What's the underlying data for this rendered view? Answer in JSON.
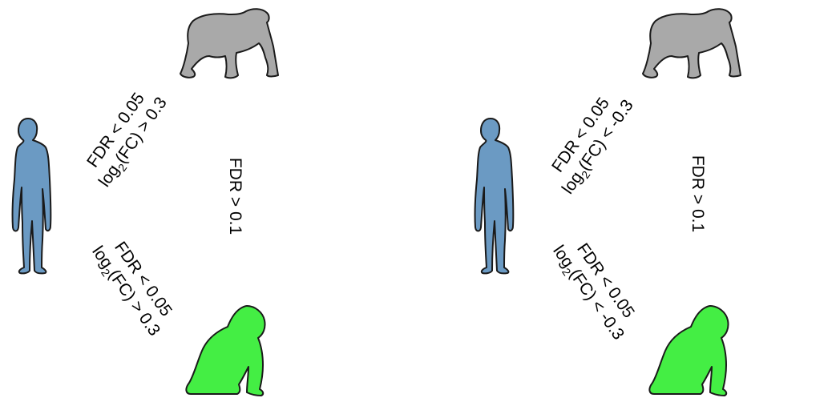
{
  "colors": {
    "human": "#6b9ac3",
    "chimp": "#a9a9a9",
    "monkey": "#44ee44",
    "outline": "#1a1a1a"
  },
  "icons": {
    "human": "human-silhouette-icon",
    "chimp": "chimpanzee-silhouette-icon",
    "monkey": "rhesus-macaque-silhouette-icon"
  },
  "panels": [
    {
      "human_chimp": {
        "fdr": "FDR < 0.05",
        "log_base": "log",
        "log_sub": "2",
        "log_rest": "(FC) > 0.3"
      },
      "human_monkey": {
        "fdr": "FDR < 0.05",
        "log_base": "log",
        "log_sub": "2",
        "log_rest": "(FC) > 0.3"
      },
      "chimp_monkey": {
        "fdr": "FDR > 0.1"
      }
    },
    {
      "human_chimp": {
        "fdr": "FDR < 0.05",
        "log_base": "log",
        "log_sub": "2",
        "log_rest": "(FC) < -0.3"
      },
      "human_monkey": {
        "fdr": "FDR < 0.05",
        "log_base": "log",
        "log_sub": "2",
        "log_rest": "(FC) < -0.3"
      },
      "chimp_monkey": {
        "fdr": "FDR > 0.1"
      }
    }
  ]
}
